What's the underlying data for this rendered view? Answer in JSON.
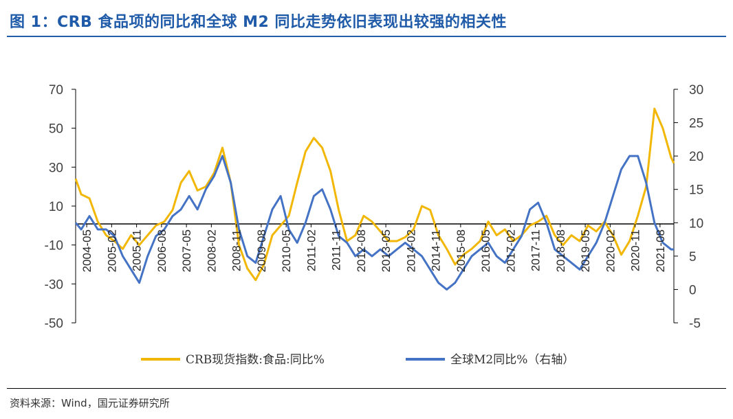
{
  "title": "图 1：CRB 食品项的同比和全球 M2 同比走势依旧表现出较强的相关性",
  "source": "资料来源：Wind，国元证券研究所",
  "colors": {
    "crb": "#F2B705",
    "m2": "#4472C4",
    "title": "#1f5ba8"
  },
  "chart_data": {
    "type": "line",
    "title": "图 1：CRB 食品项的同比和全球 M2 同比走势依旧表现出较强的相关性",
    "xlabel": "",
    "ylabel": "",
    "x_tick_labels": [
      "2004-05",
      "2005-02",
      "2005-11",
      "2006-08",
      "2007-05",
      "2008-02",
      "2008-11",
      "2009-08",
      "2010-05",
      "2011-02",
      "2011-11",
      "2012-08",
      "2013-05",
      "2014-02",
      "2014-11",
      "2015-08",
      "2016-05",
      "2017-02",
      "2017-11",
      "2018-08",
      "2019-05",
      "2020-02",
      "2020-11",
      "2021-08"
    ],
    "x_range": [
      "2004-01",
      "2022-01"
    ],
    "y_left": {
      "range": [
        -50,
        70
      ],
      "ticks": [
        "70",
        "50",
        "30",
        "10",
        "-10",
        "-30",
        "-50"
      ]
    },
    "y_right": {
      "range": [
        -5,
        30
      ],
      "ticks": [
        "30",
        "25",
        "20",
        "15",
        "10",
        "5",
        "0",
        "-5"
      ]
    },
    "legend_position": "bottom-center",
    "series": [
      {
        "name": "CRB现货指数:食品:同比%",
        "axis": "left",
        "points": [
          [
            "2004-01",
            24
          ],
          [
            "2004-03",
            16
          ],
          [
            "2004-06",
            14
          ],
          [
            "2004-09",
            2
          ],
          [
            "2004-12",
            -5
          ],
          [
            "2005-03",
            -8
          ],
          [
            "2005-06",
            -12
          ],
          [
            "2005-09",
            -5
          ],
          [
            "2005-12",
            -10
          ],
          [
            "2006-03",
            -5
          ],
          [
            "2006-06",
            0
          ],
          [
            "2006-09",
            2
          ],
          [
            "2006-12",
            8
          ],
          [
            "2007-03",
            22
          ],
          [
            "2007-06",
            28
          ],
          [
            "2007-09",
            18
          ],
          [
            "2007-12",
            20
          ],
          [
            "2008-03",
            27
          ],
          [
            "2008-06",
            40
          ],
          [
            "2008-09",
            22
          ],
          [
            "2008-12",
            -10
          ],
          [
            "2009-03",
            -22
          ],
          [
            "2009-06",
            -28
          ],
          [
            "2009-09",
            -20
          ],
          [
            "2009-12",
            -5
          ],
          [
            "2010-03",
            0
          ],
          [
            "2010-06",
            5
          ],
          [
            "2010-09",
            22
          ],
          [
            "2010-12",
            38
          ],
          [
            "2011-03",
            45
          ],
          [
            "2011-06",
            40
          ],
          [
            "2011-09",
            28
          ],
          [
            "2011-12",
            8
          ],
          [
            "2012-03",
            -8
          ],
          [
            "2012-06",
            -5
          ],
          [
            "2012-09",
            5
          ],
          [
            "2012-12",
            2
          ],
          [
            "2013-03",
            -3
          ],
          [
            "2013-06",
            -8
          ],
          [
            "2013-09",
            -8
          ],
          [
            "2013-12",
            -6
          ],
          [
            "2014-03",
            -2
          ],
          [
            "2014-06",
            10
          ],
          [
            "2014-09",
            8
          ],
          [
            "2014-12",
            -5
          ],
          [
            "2015-03",
            -12
          ],
          [
            "2015-06",
            -20
          ],
          [
            "2015-09",
            -15
          ],
          [
            "2015-12",
            -12
          ],
          [
            "2016-03",
            -8
          ],
          [
            "2016-06",
            2
          ],
          [
            "2016-09",
            -5
          ],
          [
            "2016-12",
            -2
          ],
          [
            "2017-03",
            -8
          ],
          [
            "2017-06",
            -5
          ],
          [
            "2017-09",
            0
          ],
          [
            "2017-12",
            2
          ],
          [
            "2018-03",
            5
          ],
          [
            "2018-06",
            -5
          ],
          [
            "2018-09",
            -10
          ],
          [
            "2018-12",
            -5
          ],
          [
            "2019-03",
            -8
          ],
          [
            "2019-06",
            0
          ],
          [
            "2019-09",
            -3
          ],
          [
            "2019-12",
            2
          ],
          [
            "2020-03",
            -5
          ],
          [
            "2020-06",
            -15
          ],
          [
            "2020-09",
            -8
          ],
          [
            "2020-12",
            5
          ],
          [
            "2021-03",
            20
          ],
          [
            "2021-06",
            60
          ],
          [
            "2021-09",
            50
          ],
          [
            "2021-12",
            35
          ],
          [
            "2022-01",
            32
          ]
        ]
      },
      {
        "name": "全球M2同比%（右轴）",
        "axis": "right",
        "points": [
          [
            "2004-01",
            10
          ],
          [
            "2004-03",
            9
          ],
          [
            "2004-06",
            11
          ],
          [
            "2004-09",
            9
          ],
          [
            "2004-12",
            9
          ],
          [
            "2005-03",
            8
          ],
          [
            "2005-06",
            5
          ],
          [
            "2005-09",
            3
          ],
          [
            "2005-12",
            1
          ],
          [
            "2006-03",
            5
          ],
          [
            "2006-06",
            8
          ],
          [
            "2006-09",
            9
          ],
          [
            "2006-12",
            11
          ],
          [
            "2007-03",
            12
          ],
          [
            "2007-06",
            14
          ],
          [
            "2007-09",
            12
          ],
          [
            "2007-12",
            15
          ],
          [
            "2008-03",
            17
          ],
          [
            "2008-06",
            20
          ],
          [
            "2008-09",
            16
          ],
          [
            "2008-12",
            9
          ],
          [
            "2009-03",
            5
          ],
          [
            "2009-06",
            4
          ],
          [
            "2009-09",
            8
          ],
          [
            "2009-12",
            12
          ],
          [
            "2010-03",
            14
          ],
          [
            "2010-06",
            9
          ],
          [
            "2010-09",
            7
          ],
          [
            "2010-12",
            10
          ],
          [
            "2011-03",
            14
          ],
          [
            "2011-06",
            15
          ],
          [
            "2011-09",
            12
          ],
          [
            "2011-12",
            8
          ],
          [
            "2012-03",
            7
          ],
          [
            "2012-06",
            5
          ],
          [
            "2012-09",
            6
          ],
          [
            "2012-12",
            5
          ],
          [
            "2013-03",
            6
          ],
          [
            "2013-06",
            5
          ],
          [
            "2013-09",
            6
          ],
          [
            "2013-12",
            7
          ],
          [
            "2014-03",
            6
          ],
          [
            "2014-06",
            5
          ],
          [
            "2014-09",
            3
          ],
          [
            "2014-12",
            1
          ],
          [
            "2015-03",
            0
          ],
          [
            "2015-06",
            1
          ],
          [
            "2015-09",
            3
          ],
          [
            "2015-12",
            5
          ],
          [
            "2016-03",
            6
          ],
          [
            "2016-06",
            7
          ],
          [
            "2016-09",
            5
          ],
          [
            "2016-12",
            4
          ],
          [
            "2017-03",
            6
          ],
          [
            "2017-06",
            8
          ],
          [
            "2017-09",
            12
          ],
          [
            "2017-12",
            13
          ],
          [
            "2018-03",
            10
          ],
          [
            "2018-06",
            6
          ],
          [
            "2018-09",
            5
          ],
          [
            "2018-12",
            4
          ],
          [
            "2019-03",
            3
          ],
          [
            "2019-06",
            5
          ],
          [
            "2019-09",
            7
          ],
          [
            "2019-12",
            10
          ],
          [
            "2020-03",
            14
          ],
          [
            "2020-06",
            18
          ],
          [
            "2020-09",
            20
          ],
          [
            "2020-12",
            20
          ],
          [
            "2021-03",
            16
          ],
          [
            "2021-06",
            10
          ],
          [
            "2021-09",
            7
          ],
          [
            "2021-12",
            6
          ],
          [
            "2022-01",
            6
          ]
        ]
      }
    ]
  }
}
